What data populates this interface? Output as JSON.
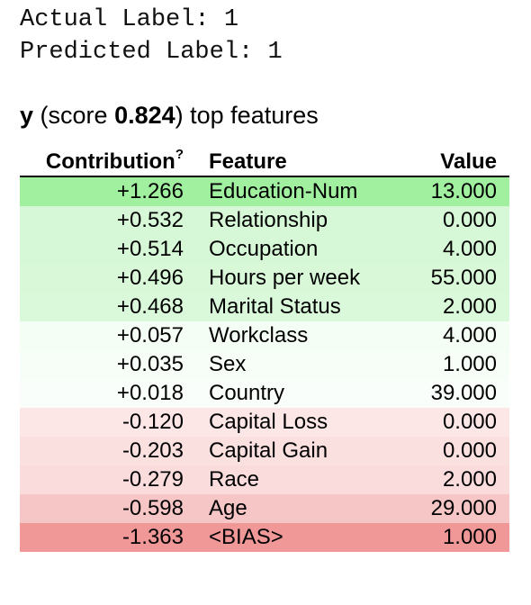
{
  "labels": {
    "actual": "Actual Label: 1",
    "predicted": "Predicted Label: 1"
  },
  "heading": {
    "target": "y",
    "score_prefix": "(score ",
    "score": "0.824",
    "suffix": ") top features"
  },
  "table": {
    "headers": {
      "contribution": "Contribution",
      "contribution_help": "?",
      "feature": "Feature",
      "value": "Value"
    },
    "rows": [
      {
        "contribution": "+1.266",
        "feature": "Education-Num",
        "value": "13.000",
        "color": "#a0f0a0"
      },
      {
        "contribution": "+0.532",
        "feature": "Relationship",
        "value": "0.000",
        "color": "#d6f8d6"
      },
      {
        "contribution": "+0.514",
        "feature": "Occupation",
        "value": "4.000",
        "color": "#d7f8d7"
      },
      {
        "contribution": "+0.496",
        "feature": "Hours per week",
        "value": "55.000",
        "color": "#d8f8d8"
      },
      {
        "contribution": "+0.468",
        "feature": "Marital Status",
        "value": "2.000",
        "color": "#daf9da"
      },
      {
        "contribution": "+0.057",
        "feature": "Workclass",
        "value": "4.000",
        "color": "#f5fef5"
      },
      {
        "contribution": "+0.035",
        "feature": "Sex",
        "value": "1.000",
        "color": "#f7fef7"
      },
      {
        "contribution": "+0.018",
        "feature": "Country",
        "value": "39.000",
        "color": "#fafefa"
      },
      {
        "contribution": "-0.120",
        "feature": "Capital Loss",
        "value": "0.000",
        "color": "#fce6e6"
      },
      {
        "contribution": "-0.203",
        "feature": "Capital Gain",
        "value": "0.000",
        "color": "#fbe0e0"
      },
      {
        "contribution": "-0.279",
        "feature": "Race",
        "value": "2.000",
        "color": "#fadcdc"
      },
      {
        "contribution": "-0.598",
        "feature": "Age",
        "value": "29.000",
        "color": "#f6c5c5"
      },
      {
        "contribution": "-1.363",
        "feature": "<BIAS>",
        "value": "1.000",
        "color": "#f09898"
      }
    ]
  }
}
